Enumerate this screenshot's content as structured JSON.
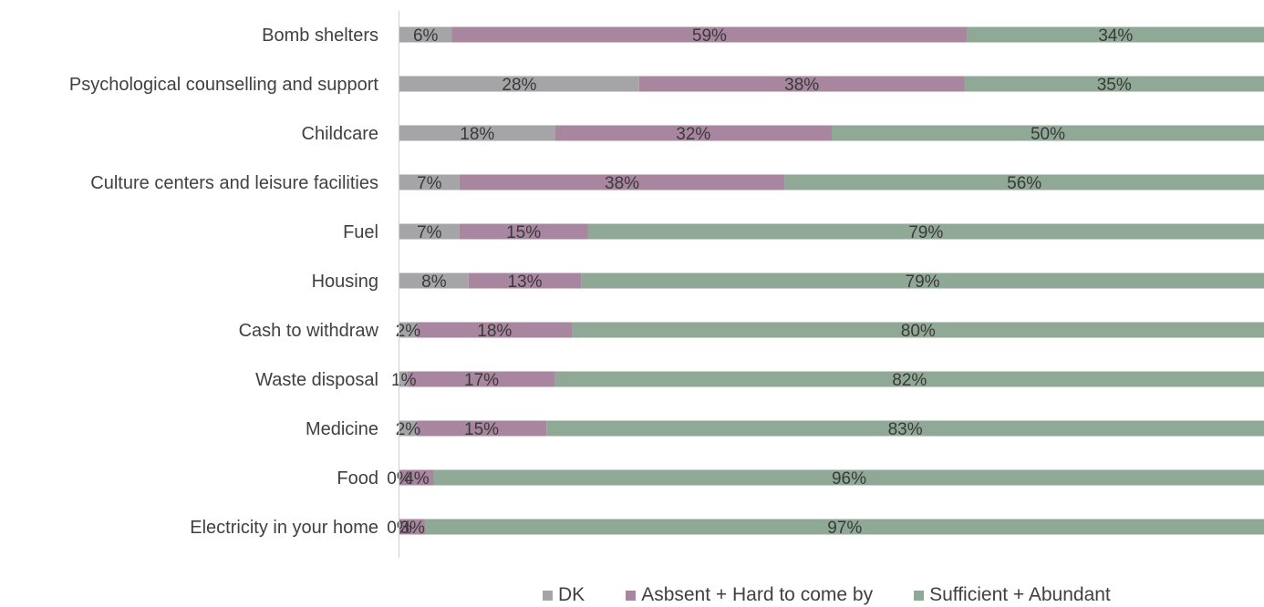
{
  "chart_data": {
    "type": "bar",
    "orientation": "horizontal",
    "stacked": true,
    "categories": [
      "Bomb shelters",
      "Psychological counselling and support",
      "Childcare",
      "Culture centers and leisure facilities",
      "Fuel",
      "Housing",
      "Cash to withdraw",
      "Waste disposal",
      "Medicine",
      "Food",
      "Electricity in your home"
    ],
    "series": [
      {
        "name": "DK",
        "color": "#a5a5a8",
        "values": [
          6,
          28,
          18,
          7,
          7,
          8,
          2,
          1,
          2,
          0,
          0
        ]
      },
      {
        "name": "Asbsent + Hard to come by",
        "color": "#a8869f",
        "values": [
          59,
          38,
          32,
          38,
          15,
          13,
          18,
          17,
          15,
          4,
          3
        ]
      },
      {
        "name": "Sufficient + Abundant",
        "color": "#8fa996",
        "values": [
          34,
          35,
          50,
          56,
          79,
          79,
          80,
          82,
          83,
          96,
          97
        ]
      }
    ],
    "value_format": "{v}%",
    "xlim": [
      0,
      100
    ],
    "grid": false,
    "legend_position": "bottom"
  }
}
